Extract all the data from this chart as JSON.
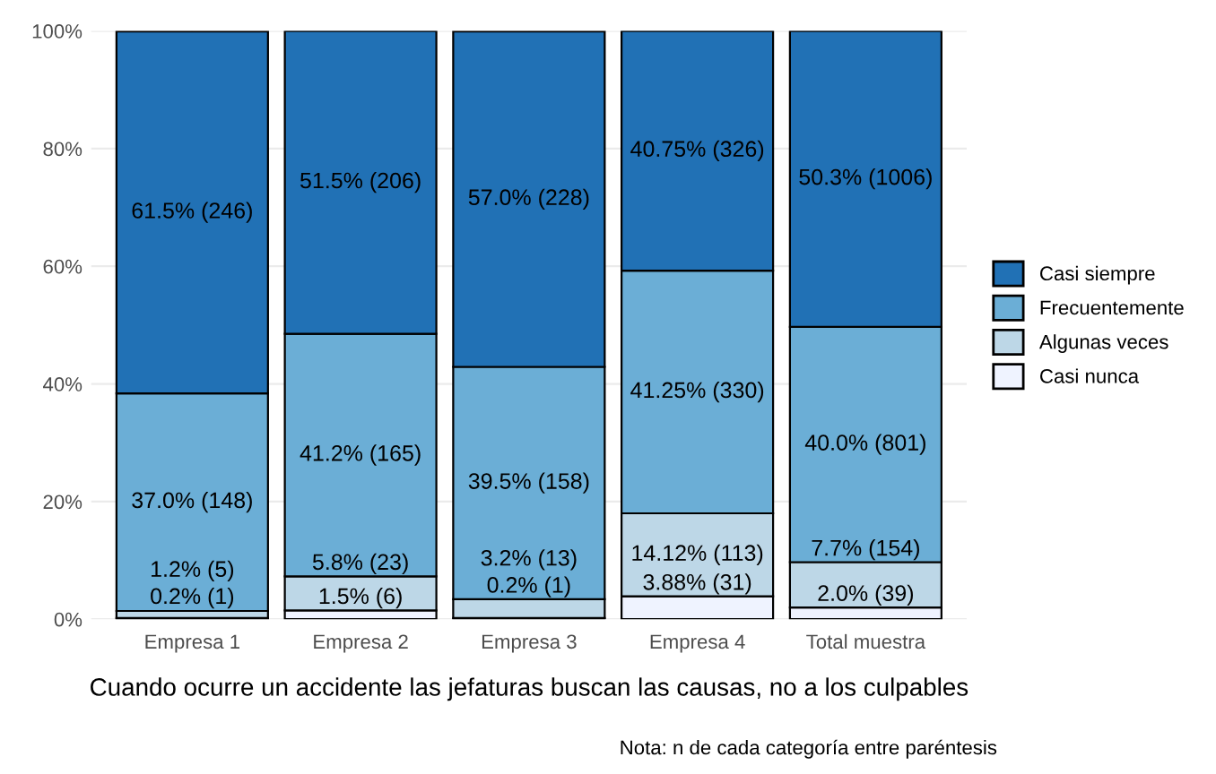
{
  "chart_data": {
    "type": "bar",
    "stacked": true,
    "categories": [
      "Empresa 1",
      "Empresa 2",
      "Empresa 3",
      "Empresa 4",
      "Total muestra"
    ],
    "series": [
      {
        "name": "Casi nunca",
        "color": "#eff3ff",
        "values": [
          0.2,
          1.5,
          0.2,
          3.88,
          2.0
        ],
        "value_labels": [
          "0.2% (1)",
          "1.5% (6)",
          "0.2% (1)",
          "3.88% (31)",
          "2.0% (39)"
        ]
      },
      {
        "name": "Algunas veces",
        "color": "#bdd7e7",
        "values": [
          1.2,
          5.8,
          3.2,
          14.12,
          7.7
        ],
        "value_labels": [
          "1.2% (5)",
          "5.8% (23)",
          "3.2% (13)",
          "14.12% (113)",
          "7.7% (154)"
        ]
      },
      {
        "name": "Frecuentemente",
        "color": "#6baed6",
        "values": [
          37.0,
          41.2,
          39.5,
          41.25,
          40.0
        ],
        "value_labels": [
          "37.0% (148)",
          "41.2% (165)",
          "39.5% (158)",
          "41.25% (330)",
          "40.0% (801)"
        ]
      },
      {
        "name": "Casi siempre",
        "color": "#2171b5",
        "values": [
          61.5,
          51.5,
          57.0,
          40.75,
          50.3
        ],
        "value_labels": [
          "61.5% (246)",
          "51.5% (206)",
          "57.0% (228)",
          "40.75% (326)",
          "50.3% (1006)"
        ]
      }
    ],
    "ylim": [
      0,
      100
    ],
    "yticks": [
      {
        "value": 0,
        "label": "0%"
      },
      {
        "value": 20,
        "label": "20%"
      },
      {
        "value": 40,
        "label": "40%"
      },
      {
        "value": 60,
        "label": "60%"
      },
      {
        "value": 80,
        "label": "80%"
      },
      {
        "value": 100,
        "label": "100%"
      }
    ],
    "xlabel": "Cuando ocurre un accidente las jefaturas buscan las causas, no a los culpables",
    "annotations": [
      "Nota: n de cada categoría entre paréntesis"
    ],
    "grid": true,
    "legend": "right"
  }
}
